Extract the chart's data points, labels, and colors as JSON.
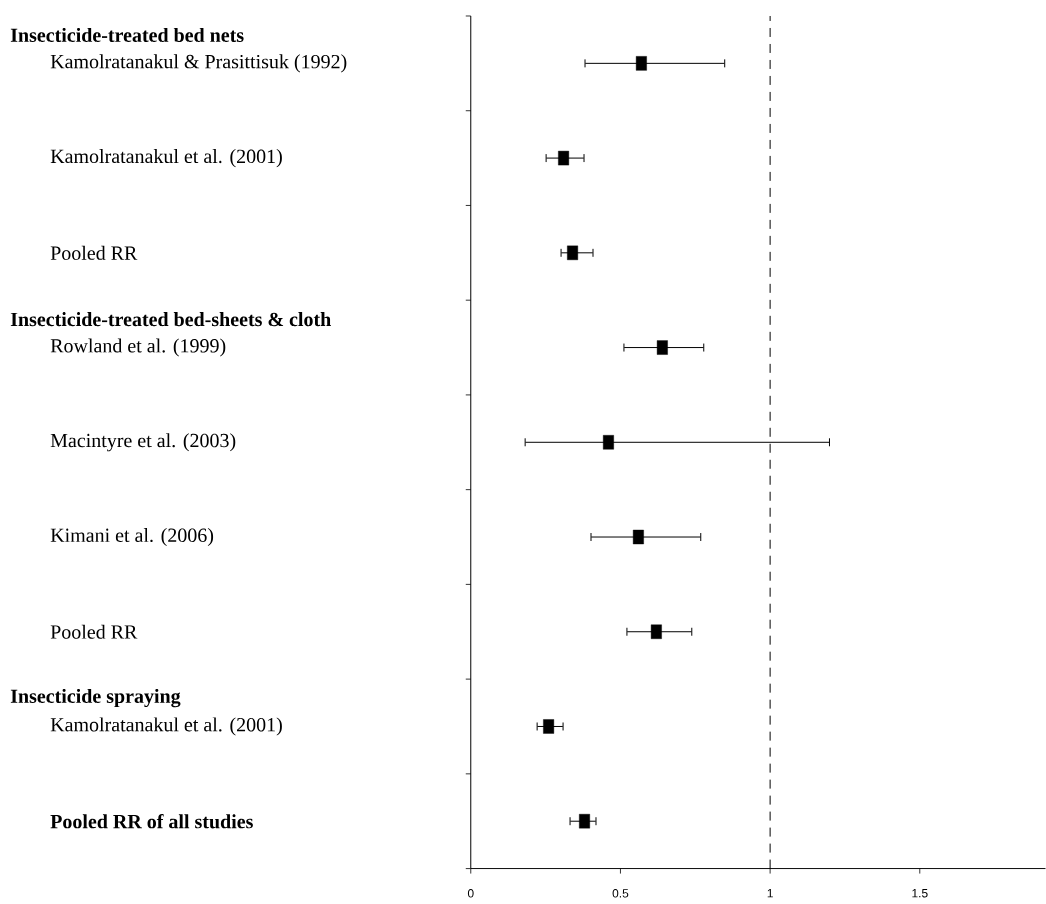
{
  "chart_data": {
    "type": "scatter",
    "orientation": "horizontal",
    "categories": [
      "Kamolratanakul & Prasittisuk (1992)",
      "Kamolratanakul et al. (2001)",
      "Pooled RR",
      "Rowland et al. (1999)",
      "Macintyre et al. (2003)",
      "Kimani et al. (2006)",
      "Pooled RR",
      "Kamolratanakul et al. (2001)",
      "Pooled RR of all studies"
    ],
    "values": [
      0.57,
      0.31,
      0.34,
      0.64,
      0.46,
      0.56,
      0.62,
      0.26,
      0.38
    ],
    "errors": [
      [
        0.38,
        0.85
      ],
      [
        0.25,
        0.38
      ],
      [
        0.3,
        0.41
      ],
      [
        0.51,
        0.78
      ],
      [
        0.18,
        1.2
      ],
      [
        0.4,
        0.77
      ],
      [
        0.52,
        0.74
      ],
      [
        0.22,
        0.31
      ],
      [
        0.33,
        0.42
      ]
    ],
    "color": "#000000",
    "marker": "square",
    "xlim": [
      0,
      1.92
    ],
    "xticks": [
      0,
      0.5,
      1,
      1.5
    ],
    "ref_lines": [
      {
        "axis": "x",
        "value": 1,
        "line_style": "dashed"
      }
    ],
    "annotations": [
      "Insecticide-treated bed nets",
      "Insecticide-treated bed-sheets & cloth",
      "Insecticide spraying"
    ]
  }
}
